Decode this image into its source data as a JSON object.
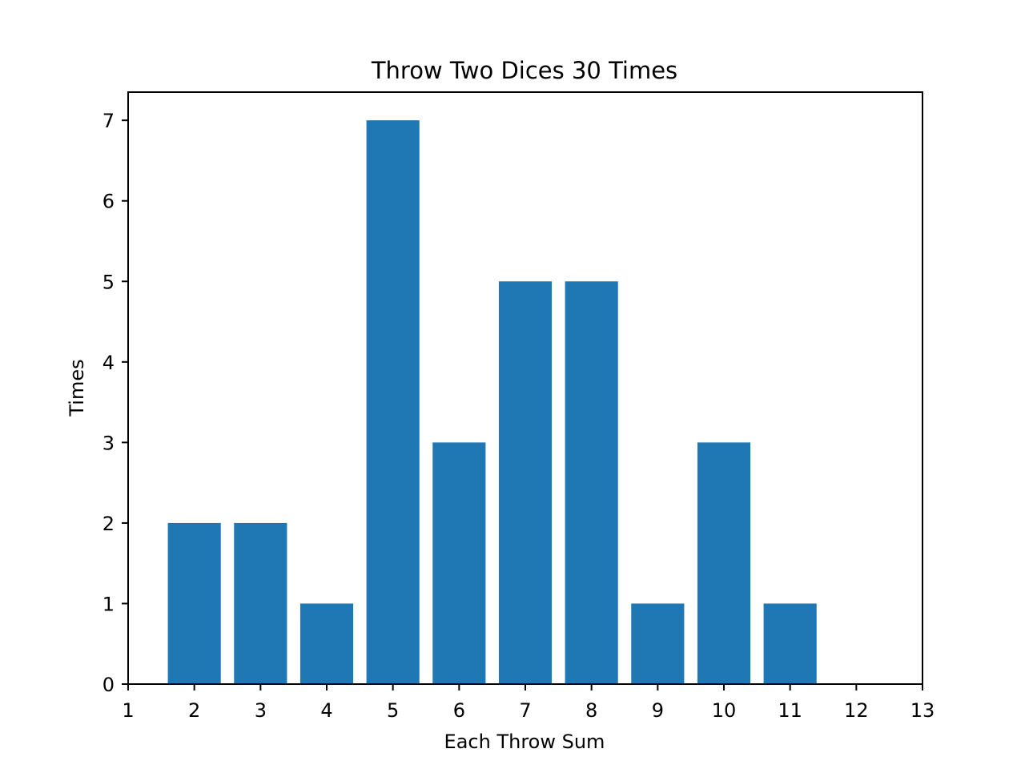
{
  "chart_data": {
    "type": "bar",
    "title": "Throw Two Dices 30 Times",
    "xlabel": "Each Throw Sum",
    "ylabel": "Times",
    "x": [
      2,
      3,
      4,
      5,
      6,
      7,
      8,
      9,
      10,
      11
    ],
    "values": [
      2,
      2,
      1,
      7,
      3,
      5,
      5,
      1,
      3,
      1
    ],
    "bar_width": 0.8,
    "xlim": [
      1,
      13
    ],
    "ylim": [
      0,
      7.35
    ],
    "xticks": [
      "1",
      "2",
      "3",
      "4",
      "5",
      "6",
      "7",
      "8",
      "9",
      "10",
      "11",
      "12",
      "13"
    ],
    "yticks": [
      "0",
      "1",
      "2",
      "3",
      "4",
      "5",
      "6",
      "7"
    ],
    "grid": false,
    "colors": {
      "bar": "#1f77b4",
      "axes": "#000000",
      "background": "#ffffff"
    }
  }
}
